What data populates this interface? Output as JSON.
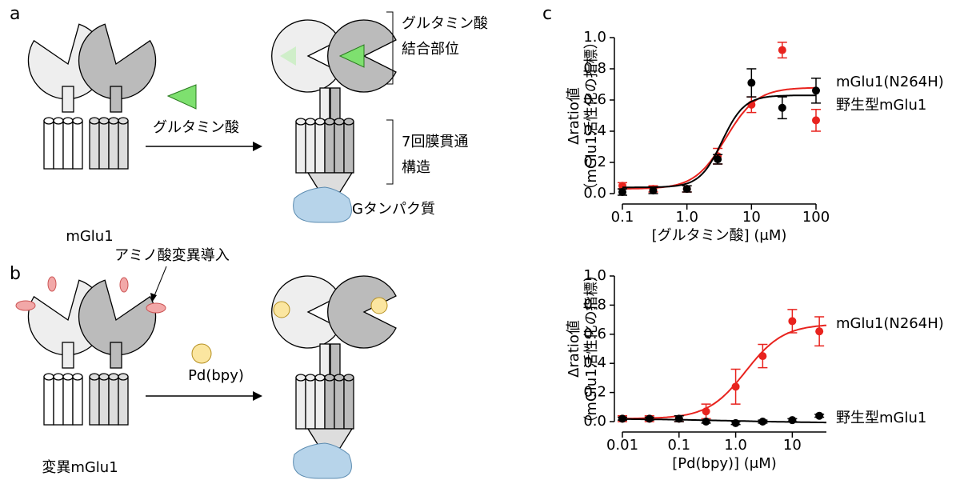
{
  "panels": {
    "a": "a",
    "b": "b",
    "c": "c"
  },
  "diagram": {
    "ligand_label": "グルタミン酸",
    "receptor_label": "mGlu1",
    "binding_site": [
      "グルタミン酸",
      "結合部位"
    ],
    "transmembrane": [
      "7回膜貫通",
      "構造"
    ],
    "g_protein": "Gタンパク質",
    "mutation_label": "アミノ酸変異導入",
    "pd_label": "Pd(bpy)",
    "mutant_label": "変異mGlu1"
  },
  "chart_data": [
    {
      "type": "scatter",
      "xlog": true,
      "xlabel": "[グルタミン酸] (μM)",
      "ylabel": [
        "Δratio値",
        "（mGlu1活性化の指標）"
      ],
      "x": [
        0.1,
        0.3,
        1,
        3,
        10,
        30,
        100
      ],
      "xlim": [
        0.1,
        100
      ],
      "xticks": [
        0.1,
        {
          "value": 1,
          "label": "1.0"
        },
        10,
        100
      ],
      "ylim": [
        0,
        1
      ],
      "yticks": [
        {
          "value": 0,
          "label": "0.0"
        },
        0.2,
        0.4,
        0.6,
        0.8,
        {
          "value": 1,
          "label": "1.0"
        }
      ],
      "series": [
        {
          "name": "mGlu1(N264H)",
          "color": "#e8231e",
          "values": [
            0.05,
            0.03,
            0.03,
            0.24,
            0.57,
            0.92,
            0.47
          ],
          "errors": [
            0.02,
            0.02,
            0.02,
            0.05,
            0.05,
            0.05,
            0.07
          ],
          "fit": {
            "bottom": 0.03,
            "top": 0.68,
            "ec50": 4,
            "hill": 1.8
          }
        },
        {
          "name": "野生型mGlu1",
          "color": "#000000",
          "values": [
            0.01,
            0.02,
            0.03,
            0.22,
            0.71,
            0.55,
            0.66
          ],
          "errors": [
            0.02,
            0.02,
            0.02,
            0.03,
            0.09,
            0.07,
            0.08
          ],
          "fit": {
            "bottom": 0.04,
            "top": 0.63,
            "ec50": 3.5,
            "hill": 2.5
          }
        }
      ]
    },
    {
      "type": "scatter",
      "xlog": true,
      "xlabel": "[Pd(bpy)] (μM)",
      "ylabel": [
        "Δratio値",
        "（mGlu1活性化の指標）"
      ],
      "x": [
        0.01,
        0.03,
        0.1,
        0.3,
        1,
        3,
        10,
        30
      ],
      "xlim": [
        0.01,
        40
      ],
      "xticks": [
        0.01,
        0.1,
        {
          "value": 1,
          "label": "1.0"
        },
        10
      ],
      "ylim": [
        0,
        1
      ],
      "yticks": [
        {
          "value": 0,
          "label": "0.0"
        },
        0.2,
        0.4,
        0.6,
        0.8,
        {
          "value": 1,
          "label": "1.0"
        }
      ],
      "series": [
        {
          "name": "mGlu1(N264H)",
          "color": "#e8231e",
          "values": [
            0.02,
            0.02,
            0.02,
            0.07,
            0.24,
            0.45,
            0.69,
            0.62
          ],
          "errors": [
            0.02,
            0.02,
            0.02,
            0.05,
            0.12,
            0.08,
            0.08,
            0.1
          ],
          "fit": {
            "bottom": 0.02,
            "top": 0.67,
            "ec50": 1.5,
            "hill": 1.3
          }
        },
        {
          "name": "野生型mGlu1",
          "color": "#000000",
          "values": [
            0.02,
            0.02,
            0.02,
            0,
            -0.01,
            0,
            0.01,
            0.04
          ],
          "errors": [
            0.01,
            0.01,
            0.02,
            0.01,
            0.01,
            0.01,
            0.01,
            0.01
          ],
          "fit": {
            "bottom": 0.02,
            "top": -0.01,
            "ec50": 1,
            "hill": 0.5
          }
        }
      ]
    }
  ]
}
